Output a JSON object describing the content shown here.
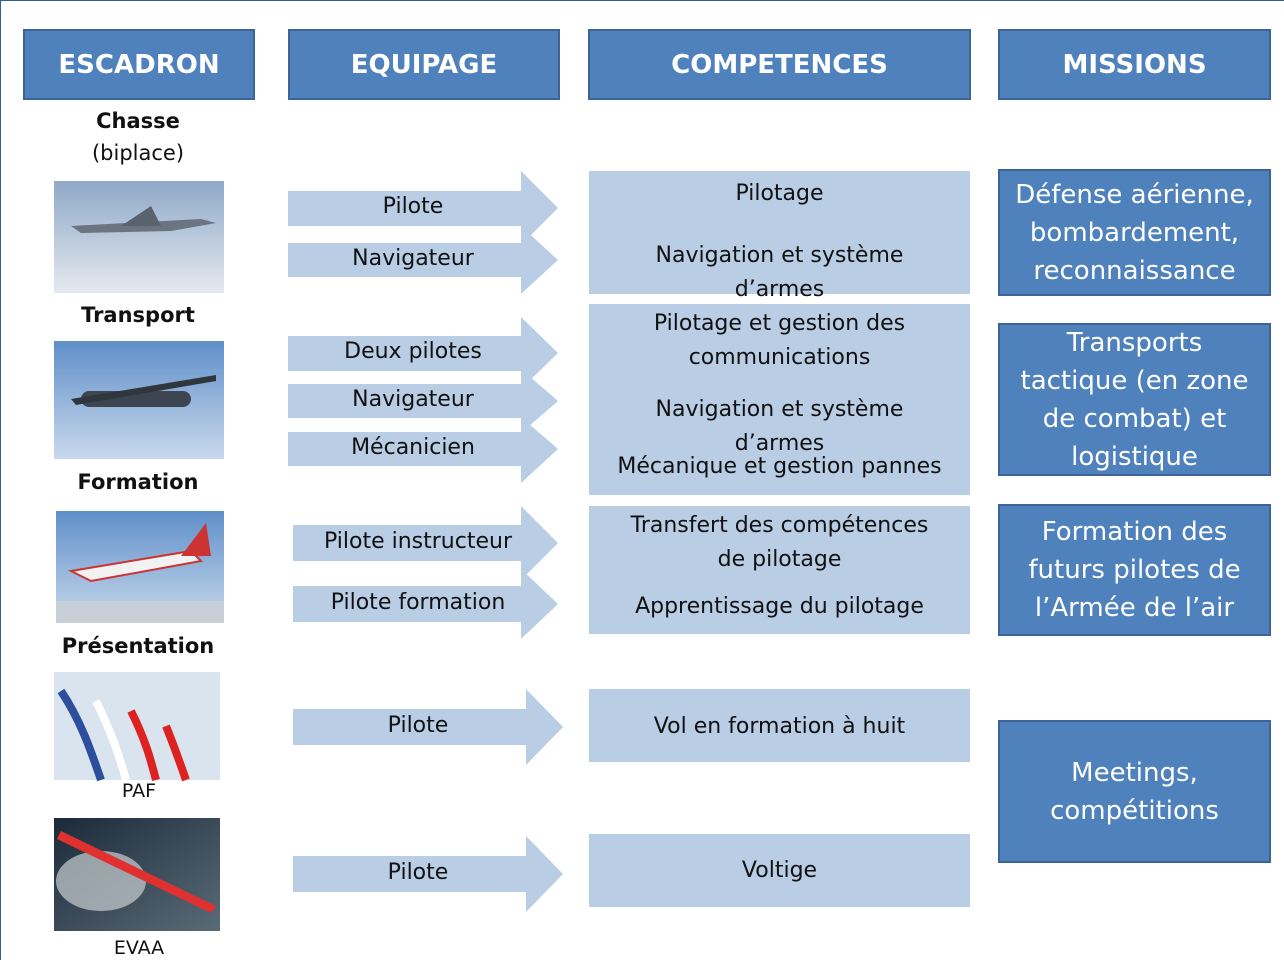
{
  "headers": [
    "ESCADRON",
    "EQUIPAGE",
    "COMPETENCES",
    "MISSIONS"
  ],
  "squadrons": [
    {
      "name": "Chasse",
      "subname": "(biplace)"
    },
    {
      "name": "Transport"
    },
    {
      "name": "Formation"
    },
    {
      "name": "Présentation"
    }
  ],
  "image_captions": [
    "PAF",
    "EVAA"
  ],
  "crews": [
    "Pilote",
    "Navigateur",
    "Deux pilotes",
    "Navigateur",
    "Mécanicien",
    "Pilote instructeur",
    "Pilote formation",
    "Pilote",
    "Pilote"
  ],
  "competences": [
    [
      "Pilotage",
      "Navigation et système d’armes"
    ],
    [
      "Pilotage et gestion des communications",
      "Navigation et système d’armes",
      "Mécanique et gestion pannes"
    ],
    [
      "Transfert des compétences de pilotage",
      "Apprentissage du pilotage"
    ],
    [
      "Vol en formation à huit"
    ],
    [
      "Voltige"
    ]
  ],
  "missions": [
    "Défense aérienne, bombardement, reconnaissance",
    "Transports tactique (en zone de combat) et logistique",
    "Formation des futurs pilotes de l’Armée de l’air",
    "Meetings, compétitions"
  ]
}
